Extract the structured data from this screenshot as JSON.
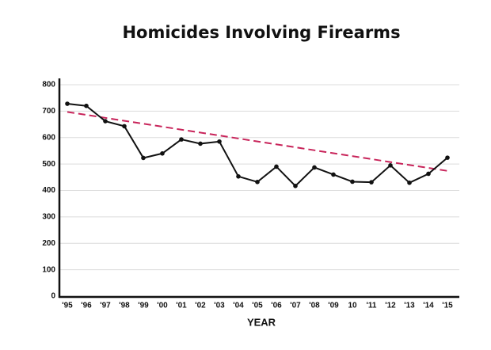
{
  "chart_data": {
    "type": "line",
    "title": "Homicides Involving Firearms",
    "x_label": "YEAR",
    "categories": [
      "'95",
      "'96",
      "'97",
      "'98",
      "'99",
      "'00",
      "'01",
      "'02",
      "'03",
      "'04",
      "'05",
      "'06",
      "'07",
      "'08",
      "'09",
      "10",
      "'11",
      "'12",
      "'13",
      "'14",
      "'15"
    ],
    "values": [
      728,
      720,
      662,
      643,
      523,
      540,
      593,
      577,
      585,
      453,
      432,
      490,
      417,
      487,
      460,
      433,
      431,
      495,
      429,
      463,
      524
    ],
    "color": "#111111",
    "trend": {
      "values": [
        697,
        474
      ],
      "color": "#c8245a",
      "dashed": true
    },
    "ylim": [
      0,
      800
    ],
    "yticks": [
      0,
      100,
      200,
      300,
      400,
      500,
      600,
      700,
      800
    ],
    "grid": true
  }
}
